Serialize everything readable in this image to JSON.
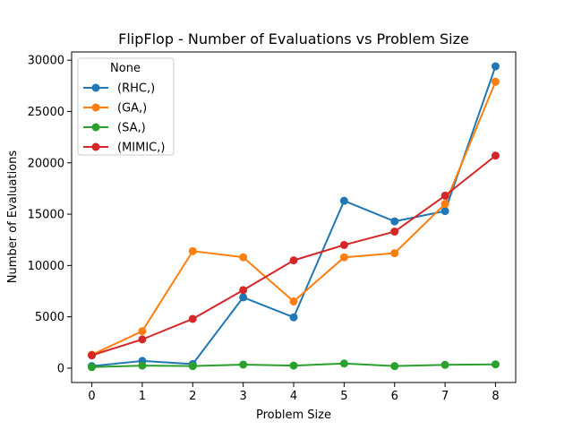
{
  "chart_data": {
    "type": "line",
    "title": "FlipFlop - Number of Evaluations vs Problem Size",
    "xlabel": "Problem Size",
    "ylabel": "Number of Evaluations",
    "x": [
      0,
      1,
      2,
      3,
      4,
      5,
      6,
      7,
      8
    ],
    "xlim": [
      -0.4,
      8.4
    ],
    "ylim": [
      -1400,
      30800
    ],
    "xticks": [
      "0",
      "1",
      "2",
      "3",
      "4",
      "5",
      "6",
      "7",
      "8"
    ],
    "yticks": [
      0,
      5000,
      10000,
      15000,
      20000,
      25000,
      30000
    ],
    "ytick_labels": [
      "0",
      "5000",
      "10000",
      "15000",
      "20000",
      "25000",
      "30000"
    ],
    "grid": false,
    "legend": {
      "title": "None",
      "placement": "top-left"
    },
    "series": [
      {
        "name": "(RHC,)",
        "color": "#1f77b4",
        "values": [
          200,
          700,
          400,
          6900,
          4950,
          16300,
          14300,
          15300,
          29400
        ]
      },
      {
        "name": "(GA,)",
        "color": "#ff7f0e",
        "values": [
          1300,
          3600,
          11400,
          10800,
          6500,
          10800,
          11200,
          16000,
          27900
        ]
      },
      {
        "name": "(SA,)",
        "color": "#2ca02c",
        "values": [
          100,
          250,
          200,
          350,
          250,
          450,
          200,
          320,
          370
        ]
      },
      {
        "name": "(MIMIC,)",
        "color": "#d62728",
        "values": [
          1250,
          2800,
          4800,
          7600,
          10500,
          12000,
          13300,
          16800,
          20700
        ]
      }
    ]
  }
}
